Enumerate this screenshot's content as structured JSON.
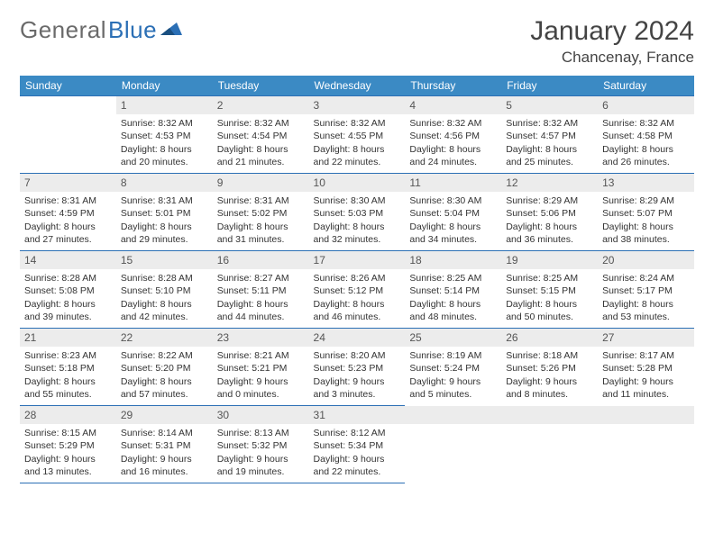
{
  "brand": {
    "part1": "General",
    "part2": "Blue"
  },
  "title": "January 2024",
  "location": "Chancenay, France",
  "colors": {
    "header_bg": "#3b8ac4",
    "border": "#2b6fb5",
    "daynum_bg": "#ececec",
    "text": "#333333",
    "logo_grey": "#6a6a6a",
    "logo_blue": "#2b6fb5"
  },
  "day_headers": [
    "Sunday",
    "Monday",
    "Tuesday",
    "Wednesday",
    "Thursday",
    "Friday",
    "Saturday"
  ],
  "weeks": [
    [
      null,
      {
        "n": "1",
        "sr": "8:32 AM",
        "ss": "4:53 PM",
        "dl": "8 hours and 20 minutes."
      },
      {
        "n": "2",
        "sr": "8:32 AM",
        "ss": "4:54 PM",
        "dl": "8 hours and 21 minutes."
      },
      {
        "n": "3",
        "sr": "8:32 AM",
        "ss": "4:55 PM",
        "dl": "8 hours and 22 minutes."
      },
      {
        "n": "4",
        "sr": "8:32 AM",
        "ss": "4:56 PM",
        "dl": "8 hours and 24 minutes."
      },
      {
        "n": "5",
        "sr": "8:32 AM",
        "ss": "4:57 PM",
        "dl": "8 hours and 25 minutes."
      },
      {
        "n": "6",
        "sr": "8:32 AM",
        "ss": "4:58 PM",
        "dl": "8 hours and 26 minutes."
      }
    ],
    [
      {
        "n": "7",
        "sr": "8:31 AM",
        "ss": "4:59 PM",
        "dl": "8 hours and 27 minutes."
      },
      {
        "n": "8",
        "sr": "8:31 AM",
        "ss": "5:01 PM",
        "dl": "8 hours and 29 minutes."
      },
      {
        "n": "9",
        "sr": "8:31 AM",
        "ss": "5:02 PM",
        "dl": "8 hours and 31 minutes."
      },
      {
        "n": "10",
        "sr": "8:30 AM",
        "ss": "5:03 PM",
        "dl": "8 hours and 32 minutes."
      },
      {
        "n": "11",
        "sr": "8:30 AM",
        "ss": "5:04 PM",
        "dl": "8 hours and 34 minutes."
      },
      {
        "n": "12",
        "sr": "8:29 AM",
        "ss": "5:06 PM",
        "dl": "8 hours and 36 minutes."
      },
      {
        "n": "13",
        "sr": "8:29 AM",
        "ss": "5:07 PM",
        "dl": "8 hours and 38 minutes."
      }
    ],
    [
      {
        "n": "14",
        "sr": "8:28 AM",
        "ss": "5:08 PM",
        "dl": "8 hours and 39 minutes."
      },
      {
        "n": "15",
        "sr": "8:28 AM",
        "ss": "5:10 PM",
        "dl": "8 hours and 42 minutes."
      },
      {
        "n": "16",
        "sr": "8:27 AM",
        "ss": "5:11 PM",
        "dl": "8 hours and 44 minutes."
      },
      {
        "n": "17",
        "sr": "8:26 AM",
        "ss": "5:12 PM",
        "dl": "8 hours and 46 minutes."
      },
      {
        "n": "18",
        "sr": "8:25 AM",
        "ss": "5:14 PM",
        "dl": "8 hours and 48 minutes."
      },
      {
        "n": "19",
        "sr": "8:25 AM",
        "ss": "5:15 PM",
        "dl": "8 hours and 50 minutes."
      },
      {
        "n": "20",
        "sr": "8:24 AM",
        "ss": "5:17 PM",
        "dl": "8 hours and 53 minutes."
      }
    ],
    [
      {
        "n": "21",
        "sr": "8:23 AM",
        "ss": "5:18 PM",
        "dl": "8 hours and 55 minutes."
      },
      {
        "n": "22",
        "sr": "8:22 AM",
        "ss": "5:20 PM",
        "dl": "8 hours and 57 minutes."
      },
      {
        "n": "23",
        "sr": "8:21 AM",
        "ss": "5:21 PM",
        "dl": "9 hours and 0 minutes."
      },
      {
        "n": "24",
        "sr": "8:20 AM",
        "ss": "5:23 PM",
        "dl": "9 hours and 3 minutes."
      },
      {
        "n": "25",
        "sr": "8:19 AM",
        "ss": "5:24 PM",
        "dl": "9 hours and 5 minutes."
      },
      {
        "n": "26",
        "sr": "8:18 AM",
        "ss": "5:26 PM",
        "dl": "9 hours and 8 minutes."
      },
      {
        "n": "27",
        "sr": "8:17 AM",
        "ss": "5:28 PM",
        "dl": "9 hours and 11 minutes."
      }
    ],
    [
      {
        "n": "28",
        "sr": "8:15 AM",
        "ss": "5:29 PM",
        "dl": "9 hours and 13 minutes."
      },
      {
        "n": "29",
        "sr": "8:14 AM",
        "ss": "5:31 PM",
        "dl": "9 hours and 16 minutes."
      },
      {
        "n": "30",
        "sr": "8:13 AM",
        "ss": "5:32 PM",
        "dl": "9 hours and 19 minutes."
      },
      {
        "n": "31",
        "sr": "8:12 AM",
        "ss": "5:34 PM",
        "dl": "9 hours and 22 minutes."
      },
      null,
      null,
      null
    ]
  ],
  "labels": {
    "sunrise": "Sunrise:",
    "sunset": "Sunset:",
    "daylight": "Daylight:"
  }
}
